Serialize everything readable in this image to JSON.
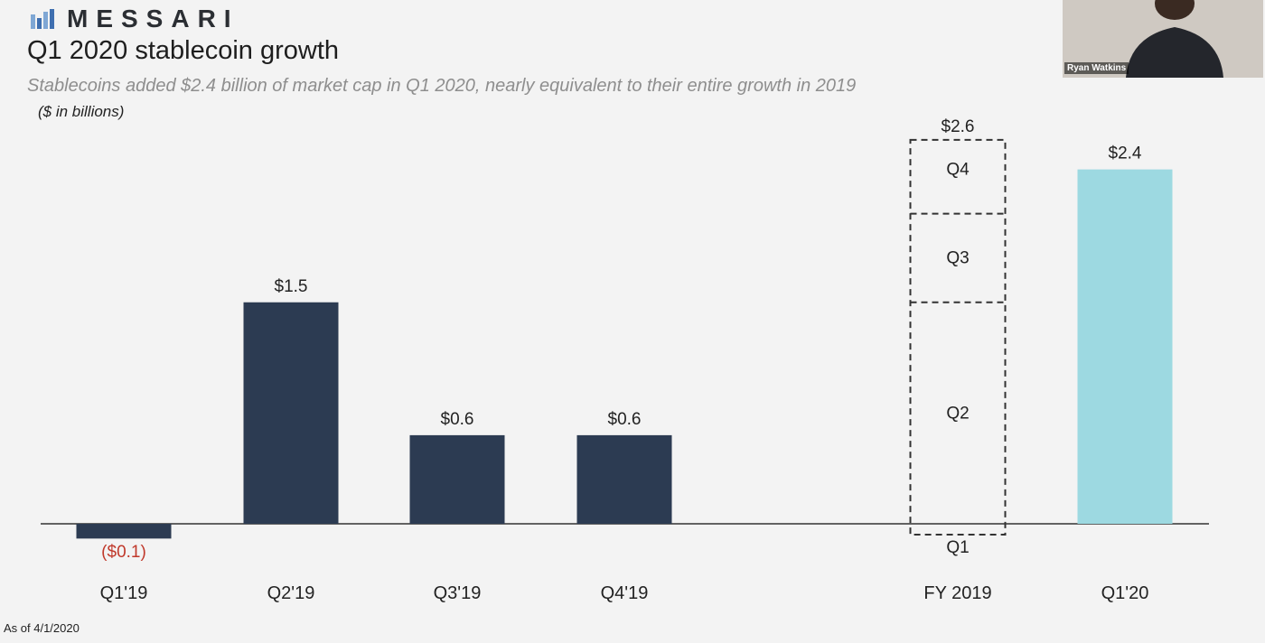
{
  "brand": "MESSARI",
  "title": "Q1 2020 stablecoin growth",
  "subtitle": "Stablecoins added $2.4 billion of market cap in Q1 2020, nearly equivalent to their entire growth in 2019",
  "unit_note": "($ in billions)",
  "footnote": "As of 4/1/2020",
  "webcam": {
    "name": "Ryan Watkins"
  },
  "colors": {
    "quarter_bar": "#2c3b52",
    "highlight_bar": "#9dd9e1",
    "negative_label": "#c0392b"
  },
  "chart_data": {
    "type": "bar",
    "categories": [
      "Q1'19",
      "Q2'19",
      "Q3'19",
      "Q4'19",
      "FY 2019",
      "Q1'20"
    ],
    "values": [
      -0.1,
      1.5,
      0.6,
      0.6,
      2.6,
      2.4
    ],
    "value_labels": [
      "($0.1)",
      "$1.5",
      "$0.6",
      "$0.6",
      "$2.6",
      "$2.4"
    ],
    "fy2019_breakdown": {
      "segments": [
        "Q1",
        "Q2",
        "Q3",
        "Q4"
      ],
      "values": [
        -0.1,
        1.5,
        0.6,
        0.6
      ],
      "style": "dashed outline"
    },
    "highlight": "Q1'20",
    "ylim": [
      -0.1,
      2.6
    ],
    "grid": false,
    "legend": "none"
  }
}
